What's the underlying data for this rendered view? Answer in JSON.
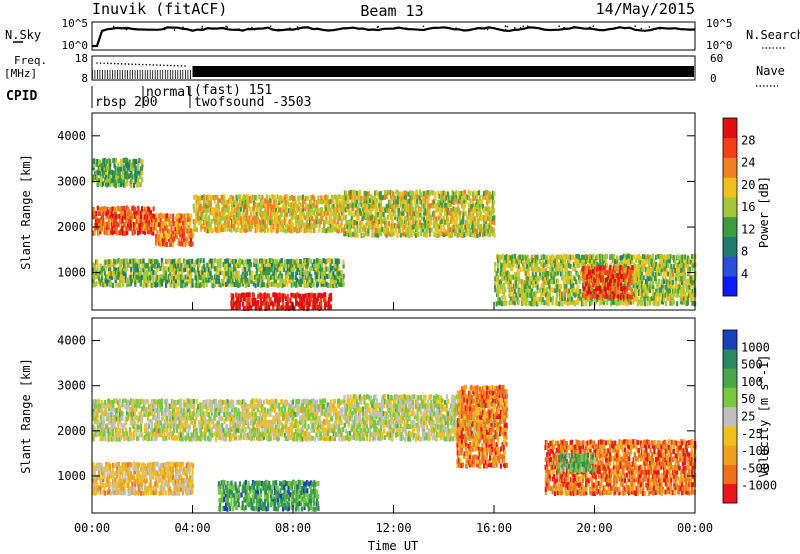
{
  "header": {
    "station": "Inuvik (fitACF)",
    "beam": "Beam 13",
    "date": "14/May/2015"
  },
  "strips": {
    "nsky_label": "N.Sky",
    "nsky_ticks": [
      "10^5",
      "10^0"
    ],
    "nsearch_label": "N.Search",
    "nsearch_ticks": [
      "10^5",
      "10^0"
    ],
    "freq_label": "Freq.",
    "freq_unit": "[MHz]",
    "freq_ticks": [
      "18",
      "8"
    ],
    "nave_label": "Nave",
    "nave_ticks": [
      "60",
      "0"
    ],
    "cpid_label": "CPID",
    "cpid_segments": [
      "rbsp 200",
      "normal",
      "(fast) 151",
      "twofsound -3503"
    ]
  },
  "chart_data": [
    {
      "type": "heatmap",
      "name": "power",
      "ylabel": "Slant Range [km]",
      "ylim": [
        180,
        4500
      ],
      "yticks": [
        1000,
        2000,
        3000,
        4000
      ],
      "xlim": [
        0,
        24
      ],
      "colorbar_label": "Power [dB]",
      "colorbar_ticks": [
        "4",
        "8",
        "12",
        "16",
        "20",
        "24",
        "28"
      ],
      "colors": [
        "#0a1aff",
        "#2850d8",
        "#1f7a70",
        "#3d9a40",
        "#a0c838",
        "#f0c020",
        "#f08020",
        "#f04018",
        "#e01010"
      ],
      "echo_bands": [
        {
          "t": [
            0.0,
            2.5
          ],
          "r": [
            1850,
            2450
          ],
          "level": 0.82
        },
        {
          "t": [
            2.5,
            4.0
          ],
          "r": [
            1600,
            2300
          ],
          "level": 0.75
        },
        {
          "t": [
            4.0,
            10.0
          ],
          "r": [
            1900,
            2700
          ],
          "level": 0.6
        },
        {
          "t": [
            10.0,
            16.0
          ],
          "r": [
            1800,
            2800
          ],
          "level": 0.55
        },
        {
          "t": [
            0.0,
            10.0
          ],
          "r": [
            700,
            1300
          ],
          "level": 0.45
        },
        {
          "t": [
            5.5,
            9.5
          ],
          "r": [
            200,
            550
          ],
          "level": 0.95
        },
        {
          "t": [
            16.0,
            24.0
          ],
          "r": [
            300,
            1400
          ],
          "level": 0.5
        },
        {
          "t": [
            19.5,
            21.5
          ],
          "r": [
            450,
            1150
          ],
          "level": 0.85
        },
        {
          "t": [
            0.0,
            2.0
          ],
          "r": [
            2900,
            3500
          ],
          "level": 0.4
        }
      ]
    },
    {
      "type": "heatmap",
      "name": "velocity",
      "ylabel": "Slant Range [km]",
      "ylim": [
        180,
        4500
      ],
      "yticks": [
        1000,
        2000,
        3000,
        4000
      ],
      "xlim": [
        0,
        24
      ],
      "xticks": [
        "00:00",
        "04:00",
        "08:00",
        "12:00",
        "16:00",
        "20:00",
        "00:00"
      ],
      "xlabel": "Time UT",
      "colorbar_label": "Velocity [m s^-1]",
      "colorbar_ticks": [
        "1000",
        "500",
        "100",
        "50",
        "25",
        "-25",
        "-100",
        "-500",
        "-1000"
      ],
      "colors": [
        "#1840b8",
        "#2a8a60",
        "#48a848",
        "#78c840",
        "#c0c0c0",
        "#f0c020",
        "#f0a020",
        "#f07020",
        "#e81818"
      ],
      "echo_bands": [
        {
          "t": [
            0.0,
            10.0
          ],
          "r": [
            1800,
            2700
          ],
          "level": 0.5
        },
        {
          "t": [
            10.0,
            16.0
          ],
          "r": [
            1800,
            2800
          ],
          "level": 0.5
        },
        {
          "t": [
            0.0,
            4.0
          ],
          "r": [
            600,
            1300
          ],
          "level": 0.62
        },
        {
          "t": [
            5.0,
            9.0
          ],
          "r": [
            250,
            900
          ],
          "level": 0.25
        },
        {
          "t": [
            14.5,
            16.5
          ],
          "r": [
            1200,
            3000
          ],
          "level": 0.78
        },
        {
          "t": [
            18.0,
            24.0
          ],
          "r": [
            600,
            1800
          ],
          "level": 0.82
        },
        {
          "t": [
            18.5,
            20.0
          ],
          "r": [
            1100,
            1500
          ],
          "level": 0.3
        }
      ]
    }
  ]
}
